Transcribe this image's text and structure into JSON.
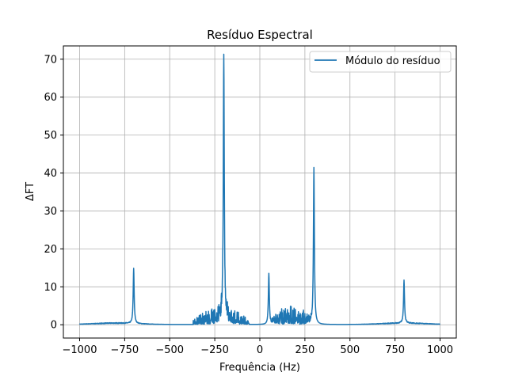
{
  "chart_data": {
    "type": "line",
    "title": "Resíduo Espectral",
    "xlabel": "Frequência (Hz)",
    "ylabel": "ΔFT",
    "xlim": [
      -1090,
      1090
    ],
    "ylim": [
      -3.5,
      73.5
    ],
    "xticks": [
      -1000,
      -750,
      -500,
      -250,
      0,
      250,
      500,
      750,
      1000
    ],
    "xtick_labels": [
      "−1000",
      "−750",
      "−500",
      "−250",
      "0",
      "250",
      "500",
      "750",
      "1000"
    ],
    "yticks": [
      0,
      10,
      20,
      30,
      40,
      50,
      60,
      70
    ],
    "ytick_labels": [
      "0",
      "10",
      "20",
      "30",
      "40",
      "50",
      "60",
      "70"
    ],
    "grid": true,
    "legend_position": "top-right",
    "series": [
      {
        "name": "Módulo do resíduo",
        "color": "#1f77b4",
        "peaks": [
          {
            "x": -700,
            "y": 14.5
          },
          {
            "x": -200,
            "y": 70.2
          },
          {
            "x": 50,
            "y": 13.5
          },
          {
            "x": 300,
            "y": 41.4
          },
          {
            "x": 800,
            "y": 11.3
          }
        ],
        "noise_bands": [
          {
            "x_range": [
              -370,
              -60
            ],
            "amplitude": 4.5
          },
          {
            "x_range": [
              60,
              290
            ],
            "amplitude": 5.0
          }
        ],
        "x_range": [
          -1000,
          1000
        ]
      }
    ]
  }
}
